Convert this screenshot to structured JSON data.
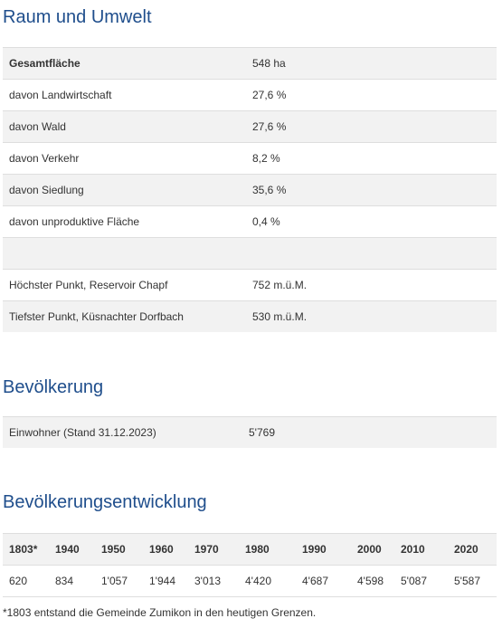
{
  "raum": {
    "title": "Raum und Umwelt",
    "rows": [
      {
        "label": "Gesamtfläche",
        "value": "548 ha",
        "bold": true
      },
      {
        "label": "davon Landwirtschaft",
        "value": "27,6 %"
      },
      {
        "label": "davon Wald",
        "value": "27,6 %"
      },
      {
        "label": "davon Verkehr",
        "value": "8,2 %"
      },
      {
        "label": "davon Siedlung",
        "value": "35,6 %"
      },
      {
        "label": "davon unproduktive Fläche",
        "value": "0,4 %"
      },
      {
        "label": "",
        "value": ""
      },
      {
        "label": "Höchster Punkt, Reservoir Chapf",
        "value": "752 m.ü.M."
      },
      {
        "label": "Tiefster Punkt, Küsnachter Dorfbach",
        "value": "530 m.ü.M."
      }
    ]
  },
  "bevoelkerung": {
    "title": "Bevölkerung",
    "label": "Einwohner (Stand 31.12.2023)",
    "value": "5'769"
  },
  "entwicklung": {
    "title": "Bevölkerungsentwicklung",
    "years": [
      "1803*",
      "1940",
      "1950",
      "1960",
      "1970",
      "1980",
      "1990",
      "2000",
      "2010",
      "2020"
    ],
    "values": [
      "620",
      "834",
      "1'057",
      "1'944",
      "3'013",
      "4'420",
      "4'687",
      "4'598",
      "5'087",
      "5'587"
    ],
    "footnote": "*1803 entstand die Gemeinde Zumikon in den heutigen Grenzen."
  }
}
